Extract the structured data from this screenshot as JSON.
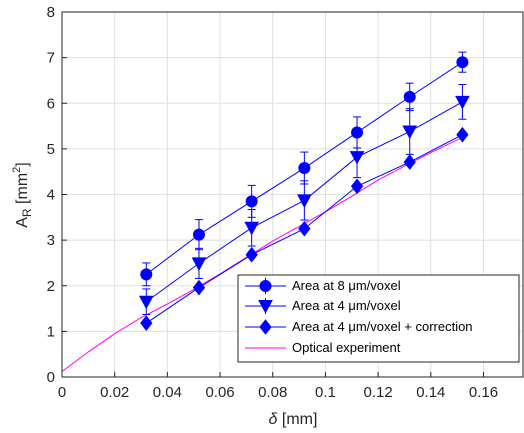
{
  "chart_data": {
    "type": "line",
    "title": "",
    "xlabel_symbol": "δ",
    "xlabel_unit": " [mm]",
    "ylabel_main": "A",
    "ylabel_sub": "R",
    "ylabel_unit_open": " [mm",
    "ylabel_unit_sup": "2",
    "ylabel_unit_close": "]",
    "xlim": [
      0,
      0.175
    ],
    "ylim": [
      0,
      8
    ],
    "xticks": [
      0,
      0.02,
      0.04,
      0.06,
      0.08,
      0.1,
      0.12,
      0.14,
      0.16
    ],
    "xtick_labels": [
      "0",
      "0.02",
      "0.04",
      "0.06",
      "0.08",
      "0.1",
      "0.12",
      "0.14",
      "0.16"
    ],
    "yticks": [
      0,
      1,
      2,
      3,
      4,
      5,
      6,
      7,
      8
    ],
    "ytick_labels": [
      "0",
      "1",
      "2",
      "3",
      "4",
      "5",
      "6",
      "7",
      "8"
    ],
    "grid": true,
    "legend_position": "lower-right",
    "x": [
      0.032,
      0.052,
      0.072,
      0.092,
      0.112,
      0.132,
      0.152
    ],
    "series": [
      {
        "name": "Area at 8 μm/voxel",
        "marker": "circle",
        "color": "#0000ff",
        "values": [
          2.25,
          3.12,
          3.85,
          4.58,
          5.36,
          6.14,
          6.9
        ],
        "errors": [
          0.25,
          0.33,
          0.35,
          0.35,
          0.34,
          0.3,
          0.22
        ]
      },
      {
        "name": "Area at 4 μm/voxel",
        "marker": "triangle-down",
        "color": "#0000ff",
        "values": [
          1.65,
          2.49,
          3.27,
          3.87,
          4.82,
          5.38,
          6.03
        ],
        "errors": [
          0.28,
          0.33,
          0.4,
          0.43,
          0.45,
          0.5,
          0.38
        ]
      },
      {
        "name": "Area at 4 μm/voxel + correction",
        "marker": "diamond",
        "color": "#0000ff",
        "values": [
          1.18,
          1.96,
          2.68,
          3.25,
          4.18,
          4.71,
          5.31
        ],
        "errors": [
          0.0,
          0.0,
          0.0,
          0.0,
          0.0,
          0.0,
          0.0
        ]
      },
      {
        "name": "Optical experiment",
        "marker": "none",
        "color": "#ff00ff",
        "x": [
          0.0,
          0.01,
          0.02,
          0.03,
          0.04,
          0.05,
          0.06,
          0.07,
          0.08,
          0.09,
          0.1,
          0.11,
          0.12,
          0.13,
          0.14,
          0.152
        ],
        "values": [
          0.12,
          0.55,
          0.95,
          1.3,
          1.6,
          1.92,
          2.26,
          2.62,
          2.98,
          3.3,
          3.62,
          3.96,
          4.32,
          4.62,
          4.92,
          5.25
        ]
      }
    ]
  }
}
